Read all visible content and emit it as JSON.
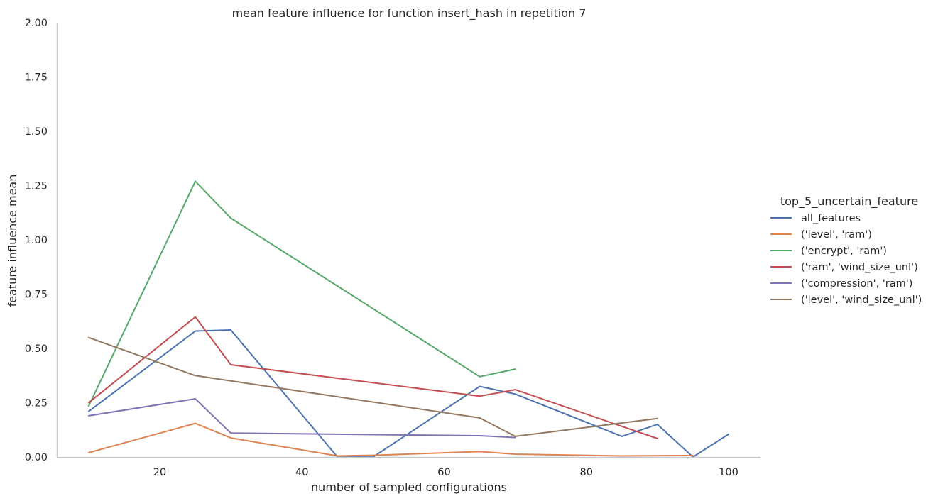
{
  "chart_data": {
    "type": "line",
    "title": "mean feature influence for function insert_hash in repetition 7",
    "xlabel": "number of sampled configurations",
    "ylabel": "feature influence mean",
    "xlim": [
      5,
      105
    ],
    "ylim": [
      0,
      2.0
    ],
    "xticks": [
      "20",
      "40",
      "60",
      "80",
      "100"
    ],
    "xtick_values": [
      20,
      40,
      60,
      80,
      100
    ],
    "yticks": [
      "0.00",
      "0.25",
      "0.50",
      "0.75",
      "1.00",
      "1.25",
      "1.50",
      "1.75",
      "2.00"
    ],
    "ytick_values": [
      0,
      0.25,
      0.5,
      0.75,
      1.0,
      1.25,
      1.5,
      1.75,
      2.0
    ],
    "grid": false,
    "legend_title": "top_5_uncertain_feature",
    "legend_position": "right",
    "series": [
      {
        "name": "all_features",
        "color": "#4c72b0",
        "segments": [
          [
            [
              10,
              0.21
            ],
            [
              25,
              0.58
            ],
            [
              30,
              0.585
            ],
            [
              45,
              0.0
            ],
            [
              50,
              0.0
            ],
            [
              65,
              0.325
            ],
            [
              70,
              0.29
            ],
            [
              85,
              0.095
            ],
            [
              90,
              0.15
            ],
            [
              95,
              0.0
            ],
            [
              100,
              0.105
            ]
          ]
        ]
      },
      {
        "name": "('level', 'ram')",
        "color": "#dd8452",
        "segments": [
          [
            [
              10,
              0.02
            ],
            [
              25,
              0.155
            ],
            [
              30,
              0.088
            ],
            [
              45,
              0.005
            ],
            [
              50,
              0.008
            ],
            [
              65,
              0.025
            ],
            [
              70,
              0.013
            ],
            [
              85,
              0.005
            ],
            [
              95,
              0.007
            ]
          ]
        ]
      },
      {
        "name": "('encrypt', 'ram')",
        "color": "#55a868",
        "segments": [
          [
            [
              10,
              0.235
            ],
            [
              25,
              1.27
            ],
            [
              30,
              1.1
            ],
            [
              65,
              0.37
            ],
            [
              70,
              0.405
            ]
          ]
        ]
      },
      {
        "name": "('ram', 'wind_size_unl')",
        "color": "#c44e52",
        "segments": [
          [
            [
              10,
              0.25
            ],
            [
              25,
              0.645
            ],
            [
              30,
              0.425
            ],
            [
              65,
              0.28
            ],
            [
              70,
              0.31
            ],
            [
              90,
              0.085
            ]
          ]
        ]
      },
      {
        "name": "('compression', 'ram')",
        "color": "#8172b3",
        "segments": [
          [
            [
              10,
              0.19
            ],
            [
              25,
              0.268
            ],
            [
              30,
              0.11
            ],
            [
              65,
              0.098
            ],
            [
              70,
              0.09
            ]
          ]
        ]
      },
      {
        "name": "('level', 'wind_size_unl')",
        "color": "#937860",
        "segments": [
          [
            [
              10,
              0.55
            ],
            [
              25,
              0.375
            ],
            [
              65,
              0.18
            ],
            [
              70,
              0.095
            ],
            [
              90,
              0.177
            ]
          ]
        ]
      }
    ]
  }
}
